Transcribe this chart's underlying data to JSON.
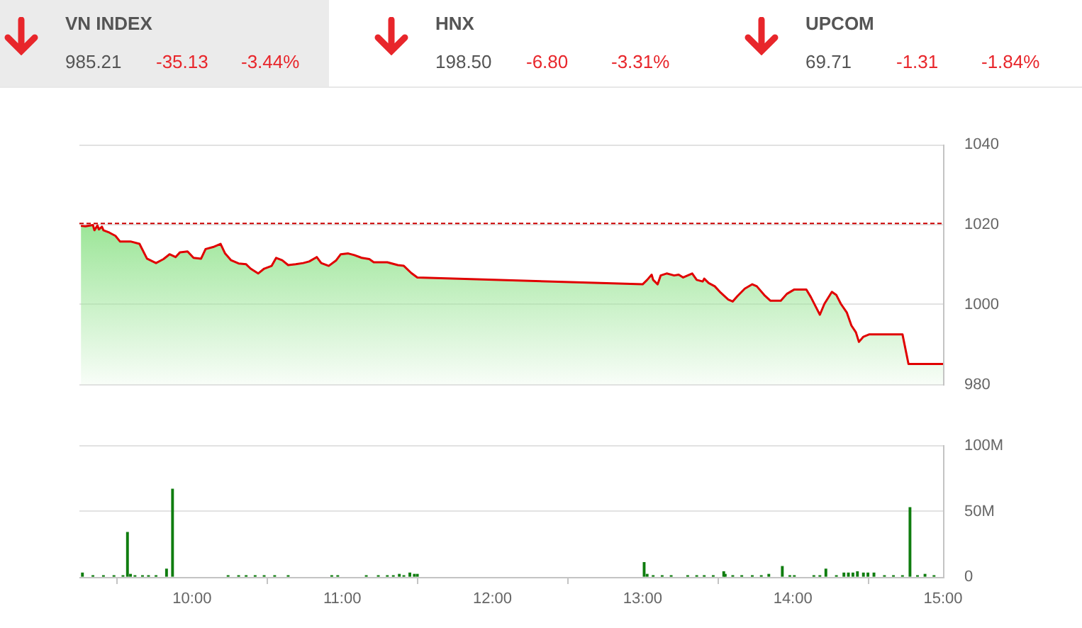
{
  "chart_data": [
    {
      "type": "other",
      "categories": [
        "VN INDEX",
        "HNX",
        "UPCOM"
      ],
      "series": [
        {
          "color": "#555555",
          "values": [
            985.21,
            198.5,
            69.71
          ],
          "value_labels": [
            "985.21",
            "198.50",
            "69.71"
          ]
        },
        {
          "color": "#e8262b",
          "values": [
            -35.13,
            -6.8,
            -1.31
          ],
          "value_labels": [
            "-35.13",
            "-6.80",
            "-1.31"
          ]
        },
        {
          "color": "#e8262b",
          "values": [
            -3.44,
            -3.31,
            -1.84
          ],
          "value_labels": [
            "-3.44%",
            "-3.31%",
            "-1.84%"
          ]
        }
      ]
    },
    {
      "type": "area",
      "color": "#9ee69a",
      "x": [
        9.26,
        9.29,
        9.34,
        9.35,
        9.37,
        9.38,
        9.4,
        9.41,
        9.45,
        9.49,
        9.52,
        9.59,
        9.65,
        9.7,
        9.76,
        9.81,
        9.85,
        9.89,
        9.92,
        9.97,
        10.01,
        10.06,
        10.09,
        10.14,
        10.19,
        10.22,
        10.26,
        10.31,
        10.36,
        10.39,
        10.44,
        10.48,
        10.53,
        10.56,
        10.6,
        10.64,
        10.69,
        10.74,
        10.78,
        10.83,
        10.86,
        10.91,
        10.96,
        10.99,
        11.04,
        11.08,
        11.13,
        11.18,
        11.21,
        11.3,
        11.37,
        11.41,
        11.46,
        11.5,
        13.0,
        13.03,
        13.06,
        13.07,
        13.1,
        13.12,
        13.16,
        13.21,
        13.24,
        13.27,
        13.3,
        13.33,
        13.36,
        13.4,
        13.41,
        13.44,
        13.48,
        13.52,
        13.57,
        13.6,
        13.63,
        13.68,
        13.73,
        13.76,
        13.81,
        13.85,
        13.92,
        13.96,
        14.01,
        14.09,
        14.12,
        14.15,
        14.18,
        14.21,
        14.26,
        14.29,
        14.32,
        14.36,
        14.39,
        14.42,
        14.44,
        14.47,
        14.51,
        14.73,
        14.77,
        15.0
      ],
      "series": [
        {
          "color": "#e00000",
          "values": [
            1019.7,
            1019.6,
            1019.9,
            1018.6,
            1019.8,
            1018.8,
            1019.5,
            1018.6,
            1018.0,
            1017.2,
            1015.8,
            1015.8,
            1015.2,
            1011.5,
            1010.4,
            1011.4,
            1012.6,
            1011.9,
            1013.1,
            1013.3,
            1011.7,
            1011.5,
            1013.9,
            1014.4,
            1015.2,
            1012.8,
            1011.1,
            1010.3,
            1010.1,
            1009.0,
            1007.8,
            1009.0,
            1009.7,
            1011.7,
            1011.1,
            1009.9,
            1010.1,
            1010.4,
            1010.8,
            1011.9,
            1010.4,
            1009.7,
            1011.1,
            1012.6,
            1012.8,
            1012.4,
            1011.7,
            1011.4,
            1010.6,
            1010.6,
            1009.9,
            1009.7,
            1007.9,
            1006.8,
            1005.1,
            1006.2,
            1007.5,
            1006.2,
            1005.1,
            1007.3,
            1007.8,
            1007.3,
            1007.5,
            1006.8,
            1007.3,
            1007.8,
            1006.2,
            1005.8,
            1006.5,
            1005.4,
            1004.6,
            1003.0,
            1001.3,
            1000.8,
            1002.1,
            1004.0,
            1005.1,
            1004.6,
            1002.4,
            1001.0,
            1001.0,
            1002.7,
            1003.8,
            1003.8,
            1001.9,
            999.7,
            997.5,
            1000.2,
            1003.2,
            1002.4,
            1000.2,
            998.0,
            994.8,
            993.1,
            990.7,
            992.0,
            992.6,
            992.6,
            985.2,
            985.2
          ]
        }
      ],
      "xlim": [
        9.25,
        15
      ],
      "ylim": [
        980,
        1040
      ],
      "yticks": [
        980,
        1000,
        1020,
        1040
      ],
      "grid": "y",
      "tick_labels": "y",
      "ref_lines": [
        {
          "axis": "y",
          "value": 1020.3,
          "color": "#cc0000",
          "line_style": "dashed"
        }
      ]
    },
    {
      "type": "bar",
      "color": "#0f7d0f",
      "x": [
        9.27,
        9.34,
        9.41,
        9.48,
        9.54,
        9.57,
        9.59,
        9.62,
        9.67,
        9.71,
        9.76,
        9.83,
        9.87,
        10.24,
        10.31,
        10.36,
        10.42,
        10.48,
        10.55,
        10.64,
        10.93,
        10.97,
        11.16,
        11.24,
        11.3,
        11.34,
        11.38,
        11.41,
        11.45,
        11.48,
        11.5,
        13.01,
        13.03,
        13.07,
        13.13,
        13.19,
        13.3,
        13.36,
        13.41,
        13.47,
        13.54,
        13.55,
        13.6,
        13.66,
        13.73,
        13.79,
        13.84,
        13.93,
        13.98,
        14.01,
        14.14,
        14.18,
        14.22,
        14.29,
        14.34,
        14.37,
        14.4,
        14.43,
        14.47,
        14.5,
        14.54,
        14.61,
        14.67,
        14.73,
        14.78,
        14.83,
        14.88,
        14.94
      ],
      "values": [
        3,
        1,
        1,
        1,
        1,
        34,
        2,
        1,
        1,
        1,
        1,
        6,
        67,
        1,
        1,
        1,
        1,
        1,
        1,
        1,
        1,
        1,
        1,
        1,
        1,
        1,
        2,
        1,
        3,
        2,
        2,
        11,
        2,
        1,
        1,
        1,
        1,
        1,
        1,
        1,
        4,
        2,
        1,
        1,
        1,
        1,
        2,
        8,
        1,
        1,
        1,
        1,
        6,
        1,
        3,
        3,
        3,
        4,
        3,
        3,
        3,
        1,
        1,
        1,
        53,
        1,
        2,
        1
      ],
      "xlim": [
        9.25,
        15
      ],
      "xticks": [
        {
          "value": 10,
          "label": "10:00"
        },
        {
          "value": 11,
          "label": "11:00"
        },
        {
          "value": 12,
          "label": "12:00"
        },
        {
          "value": 13,
          "label": "13:00"
        },
        {
          "value": 14,
          "label": "14:00"
        },
        {
          "value": 15,
          "label": "15:00"
        }
      ],
      "ylim": [
        0,
        100
      ],
      "yticks": [
        0,
        {
          "value": 50,
          "label": "50M"
        },
        {
          "value": 100,
          "label": "100M"
        }
      ],
      "grid": "y"
    }
  ]
}
